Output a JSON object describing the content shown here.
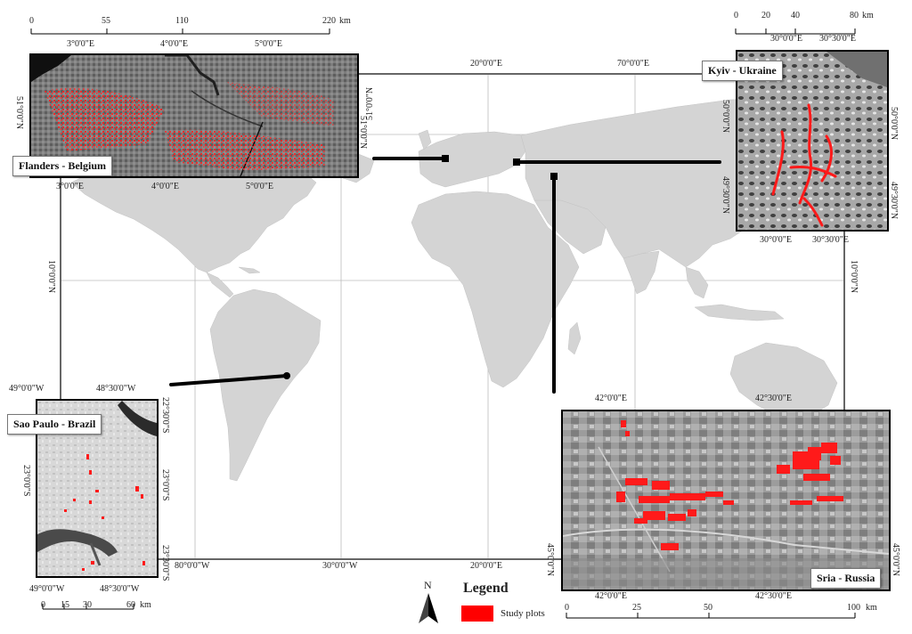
{
  "world_map": {
    "graticule_labels": {
      "top": [
        "20°0'0\"E",
        "70°0'0\"E"
      ],
      "bottom": [
        "80°0'0\"W",
        "30°0'0\"W",
        "20°0'0\"E"
      ],
      "left": [
        "10°0'0\"N"
      ],
      "right": [
        "10°0'0\"N"
      ],
      "inner": [
        "51°0'0\"N"
      ]
    },
    "colors": {
      "land": "#d4d4d4",
      "ocean": "#ffffff",
      "plots": "#ff0000",
      "connector": "#000000"
    }
  },
  "insets": {
    "flanders": {
      "name": "Flanders - Belgium",
      "scale": {
        "ticks": [
          "0",
          "55",
          "110",
          "220"
        ],
        "unit": "km"
      },
      "top_labels": [
        "3°0'0\"E",
        "4°0'0\"E",
        "5°0'0\"E"
      ],
      "bottom_labels": [
        "3°0'0\"E",
        "4°0'0\"E",
        "5°0'0\"E"
      ],
      "left_labels": [
        "51°0'0\"N"
      ],
      "right_labels": [
        "51°0'0\"N"
      ]
    },
    "kyiv": {
      "name": "Kyiv - Ukraine",
      "scale": {
        "ticks": [
          "0",
          "20",
          "40",
          "80"
        ],
        "unit": "km"
      },
      "top_labels": [
        "30°0'0\"E",
        "30°30'0\"E"
      ],
      "bottom_labels": [
        "30°0'0\"E",
        "30°30'0\"E"
      ],
      "left_labels": [
        "50°0'0\"N",
        "49°30'0\"N"
      ],
      "right_labels": [
        "50°0'0\"N",
        "49°30'0\"N"
      ]
    },
    "saopaulo": {
      "name": "Sao Paulo - Brazil",
      "scale": {
        "ticks": [
          "0",
          "15",
          "30",
          "60"
        ],
        "unit": "km"
      },
      "top_labels": [
        "49°0'0\"W",
        "48°30'0\"W"
      ],
      "bottom_labels": [
        "49°0'0\"W",
        "48°30'0\"W"
      ],
      "left_labels": [
        "23°0'0\"S"
      ],
      "right_labels": [
        "22°30'0\"S",
        "23°0'0\"S",
        "23°30'0\"S"
      ]
    },
    "sria": {
      "name": "Sria - Russia",
      "scale": {
        "ticks": [
          "0",
          "25",
          "50",
          "100"
        ],
        "unit": "km"
      },
      "top_labels": [
        "42°0'0\"E",
        "42°30'0\"E"
      ],
      "bottom_labels": [
        "42°0'0\"E",
        "42°30'0\"E"
      ],
      "left_labels": [
        "45°0'0\"N"
      ],
      "right_labels": [
        "45°0'0\"N"
      ]
    }
  },
  "north_arrow": {
    "label": "N"
  },
  "legend": {
    "title": "Legend",
    "items": [
      {
        "label": "Study plots",
        "color": "#ff0000"
      }
    ]
  }
}
